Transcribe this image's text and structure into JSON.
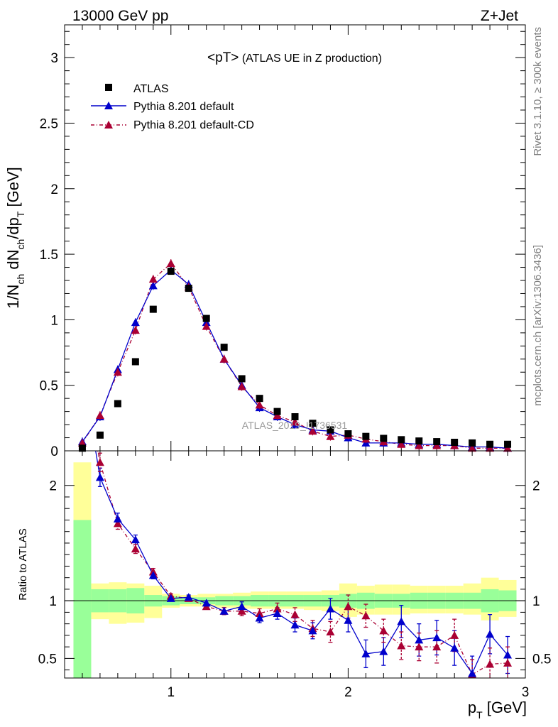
{
  "header": {
    "left": "13000 GeV pp",
    "right": "Z+Jet"
  },
  "side_labels": {
    "rivet": "Rivet 3.1.10, ≥ 300k events",
    "mcplots": "mcplots.cern.ch [arXiv:1306.3436]"
  },
  "watermark": "ATLAS_2019_I1736531",
  "chart_data": [
    {
      "type": "scatter",
      "title_main": "<pT>",
      "title_rest": " (ATLAS UE in Z production)",
      "ylabel": "1/N_ch dN_ch/dp_T [GeV]",
      "xlim": [
        0.4,
        3.0
      ],
      "ylim": [
        0,
        3.25
      ],
      "y_ticks": [
        0,
        0.5,
        1,
        1.5,
        2,
        2.5,
        3
      ],
      "y_tick_labels": [
        "0",
        "0.5",
        "1",
        "1.5",
        "2",
        "2.5",
        "3"
      ],
      "legend_position": "top-left",
      "legend": [
        "ATLAS",
        "Pythia 8.201 default",
        "Pythia 8.201 default-CD"
      ],
      "colors": {
        "atlas": "#000000",
        "default": "#0000cc",
        "cd": "#aa0033"
      },
      "x": [
        0.5,
        0.6,
        0.7,
        0.8,
        0.9,
        1.0,
        1.1,
        1.2,
        1.3,
        1.4,
        1.5,
        1.6,
        1.7,
        1.8,
        1.9,
        2.0,
        2.1,
        2.2,
        2.3,
        2.4,
        2.5,
        2.6,
        2.7,
        2.8,
        2.9
      ],
      "series": [
        {
          "name": "ATLAS",
          "values": [
            0.02,
            0.12,
            0.36,
            0.68,
            1.08,
            1.37,
            1.24,
            1.01,
            0.79,
            0.55,
            0.4,
            0.3,
            0.26,
            0.21,
            0.16,
            0.13,
            0.11,
            0.095,
            0.085,
            0.075,
            0.07,
            0.065,
            0.06,
            0.05,
            0.05
          ]
        },
        {
          "name": "Pythia 8.201 default",
          "values": [
            0.07,
            0.26,
            0.62,
            0.98,
            1.26,
            1.38,
            1.27,
            0.98,
            0.7,
            0.5,
            0.33,
            0.26,
            0.2,
            0.16,
            0.15,
            0.1,
            0.06,
            0.06,
            0.06,
            0.05,
            0.05,
            0.04,
            0.03,
            0.03,
            0.02
          ]
        },
        {
          "name": "Pythia 8.201 default-CD",
          "values": [
            0.06,
            0.27,
            0.6,
            0.92,
            1.31,
            1.43,
            1.25,
            0.95,
            0.7,
            0.49,
            0.35,
            0.27,
            0.22,
            0.15,
            0.11,
            0.12,
            0.09,
            0.07,
            0.05,
            0.04,
            0.04,
            0.04,
            0.02,
            0.02,
            0.02
          ]
        }
      ]
    },
    {
      "type": "line",
      "ylabel": "Ratio to ATLAS",
      "xlabel": "p_T [GeV]",
      "xlim": [
        0.4,
        3.0
      ],
      "ylim": [
        0.33,
        2.3
      ],
      "x_ticks": [
        1,
        2,
        3
      ],
      "x_tick_labels": [
        "1",
        "2",
        "3"
      ],
      "y_ticks": [
        0.5,
        1,
        2
      ],
      "y_tick_labels": [
        "0.5",
        "1",
        "2"
      ],
      "reference_line": 1,
      "x": [
        0.5,
        0.6,
        0.7,
        0.8,
        0.9,
        1.0,
        1.1,
        1.2,
        1.3,
        1.4,
        1.5,
        1.6,
        1.7,
        1.8,
        1.9,
        2.0,
        2.1,
        2.2,
        2.3,
        2.4,
        2.5,
        2.6,
        2.7,
        2.8,
        2.9
      ],
      "band_green": [
        [
          0.3,
          1.7
        ],
        [
          0.9,
          1.1
        ],
        [
          0.9,
          1.1
        ],
        [
          0.89,
          1.11
        ],
        [
          0.95,
          1.05
        ],
        [
          0.96,
          1.04
        ],
        [
          0.97,
          1.03
        ],
        [
          0.97,
          1.03
        ],
        [
          0.96,
          1.04
        ],
        [
          0.96,
          1.04
        ],
        [
          0.95,
          1.05
        ],
        [
          0.95,
          1.05
        ],
        [
          0.95,
          1.05
        ],
        [
          0.95,
          1.05
        ],
        [
          0.95,
          1.05
        ],
        [
          0.94,
          1.06
        ],
        [
          0.93,
          1.07
        ],
        [
          0.94,
          1.06
        ],
        [
          0.94,
          1.06
        ],
        [
          0.93,
          1.07
        ],
        [
          0.93,
          1.07
        ],
        [
          0.93,
          1.07
        ],
        [
          0.93,
          1.07
        ],
        [
          0.9,
          1.1
        ],
        [
          0.91,
          1.09
        ]
      ],
      "band_yellow": [
        [
          0.3,
          2.2
        ],
        [
          0.84,
          1.15
        ],
        [
          0.8,
          1.16
        ],
        [
          0.81,
          1.15
        ],
        [
          0.85,
          1.13
        ],
        [
          0.94,
          1.06
        ],
        [
          0.95,
          1.05
        ],
        [
          0.95,
          1.06
        ],
        [
          0.94,
          1.06
        ],
        [
          0.93,
          1.07
        ],
        [
          0.93,
          1.08
        ],
        [
          0.93,
          1.08
        ],
        [
          0.93,
          1.08
        ],
        [
          0.92,
          1.08
        ],
        [
          0.91,
          1.09
        ],
        [
          0.86,
          1.15
        ],
        [
          0.88,
          1.13
        ],
        [
          0.88,
          1.14
        ],
        [
          0.88,
          1.14
        ],
        [
          0.89,
          1.13
        ],
        [
          0.89,
          1.13
        ],
        [
          0.89,
          1.13
        ],
        [
          0.88,
          1.15
        ],
        [
          0.83,
          1.2
        ],
        [
          0.86,
          1.18
        ]
      ],
      "series": [
        {
          "name": "Pythia 8.201 default",
          "values": [
            3.0,
            2.07,
            1.71,
            1.53,
            1.22,
            1.02,
            1.03,
            0.98,
            0.91,
            0.95,
            0.85,
            0.89,
            0.79,
            0.74,
            0.93,
            0.83,
            0.54,
            0.56,
            0.82,
            0.66,
            0.68,
            0.59,
            0.37,
            0.71,
            0.53
          ],
          "errors": [
            0.3,
            0.08,
            0.05,
            0.04,
            0.03,
            0.02,
            0.02,
            0.02,
            0.03,
            0.04,
            0.04,
            0.05,
            0.06,
            0.07,
            0.09,
            0.1,
            0.12,
            0.12,
            0.14,
            0.14,
            0.15,
            0.15,
            0.15,
            0.17,
            0.16
          ]
        },
        {
          "name": "Pythia 8.201 default-CD",
          "values": [
            3.0,
            2.2,
            1.67,
            1.45,
            1.25,
            1.04,
            1.02,
            0.95,
            0.91,
            0.91,
            0.89,
            0.93,
            0.88,
            0.76,
            0.73,
            0.95,
            0.87,
            0.74,
            0.61,
            0.6,
            0.6,
            0.7,
            0.36,
            0.45,
            0.46
          ],
          "errors": [
            0.3,
            0.08,
            0.05,
            0.04,
            0.03,
            0.02,
            0.02,
            0.02,
            0.03,
            0.04,
            0.04,
            0.05,
            0.06,
            0.07,
            0.09,
            0.1,
            0.1,
            0.1,
            0.12,
            0.12,
            0.14,
            0.14,
            0.13,
            0.14,
            0.14
          ]
        }
      ]
    }
  ]
}
